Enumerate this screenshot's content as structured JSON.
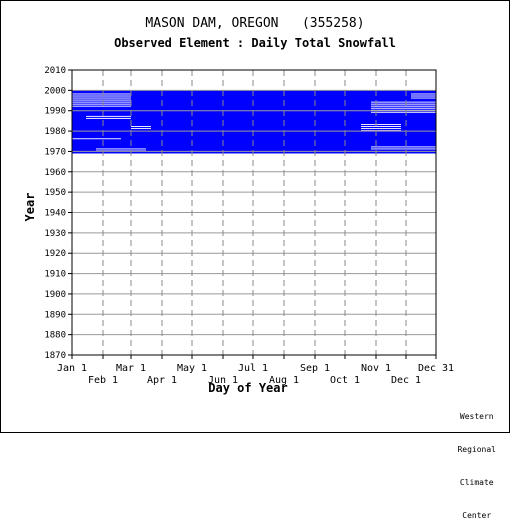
{
  "chart_data": {
    "type": "heatmap",
    "title": "MASON DAM, OREGON   (355258)",
    "subtitle": "Observed Element : Daily Total Snowfall",
    "xlabel": "Day of Year",
    "ylabel": "Year",
    "ylim": [
      1870,
      2010
    ],
    "xlim": [
      1,
      365
    ],
    "y_ticks": [
      1870,
      1880,
      1890,
      1900,
      1910,
      1920,
      1930,
      1940,
      1950,
      1960,
      1970,
      1980,
      1990,
      2000,
      2010
    ],
    "x_ticks_upper": [
      "Jan 1",
      "Mar 1",
      "May 1",
      "Jul 1",
      "Sep 1",
      "Nov 1",
      "Dec 31"
    ],
    "x_ticks_lower": [
      "Feb 1",
      "Apr 1",
      "Jun 1",
      "Aug 1",
      "Oct 1",
      "Dec 1"
    ],
    "x_ticks_upper_days": [
      1,
      60,
      121,
      182,
      244,
      305,
      365
    ],
    "x_ticks_lower_days": [
      32,
      91,
      152,
      213,
      274,
      335
    ],
    "grid": true,
    "data_color": "#0000ff",
    "observed_blocks": [
      {
        "day_start": 1,
        "day_end": 365,
        "year_start": 1969,
        "year_end": 2000
      }
    ],
    "gaps": [
      {
        "day_start": 1,
        "day_end": 60,
        "year_start": 1992,
        "year_end": 1999
      },
      {
        "day_start": 15,
        "day_end": 60,
        "year_start": 1986,
        "year_end": 1988
      },
      {
        "day_start": 1,
        "day_end": 50,
        "year_start": 1976,
        "year_end": 1977
      },
      {
        "day_start": 25,
        "day_end": 75,
        "year_start": 1970,
        "year_end": 1972
      },
      {
        "day_start": 60,
        "day_end": 80,
        "year_start": 1981,
        "year_end": 1983
      },
      {
        "day_start": 300,
        "day_end": 365,
        "year_start": 1989,
        "year_end": 1995
      },
      {
        "day_start": 290,
        "day_end": 330,
        "year_start": 1980,
        "year_end": 1984
      },
      {
        "day_start": 300,
        "day_end": 365,
        "year_start": 1971,
        "year_end": 1973
      },
      {
        "day_start": 340,
        "day_end": 365,
        "year_start": 1996,
        "year_end": 1999
      }
    ]
  },
  "credit": [
    "Western",
    "Regional",
    "Climate",
    "Center"
  ]
}
